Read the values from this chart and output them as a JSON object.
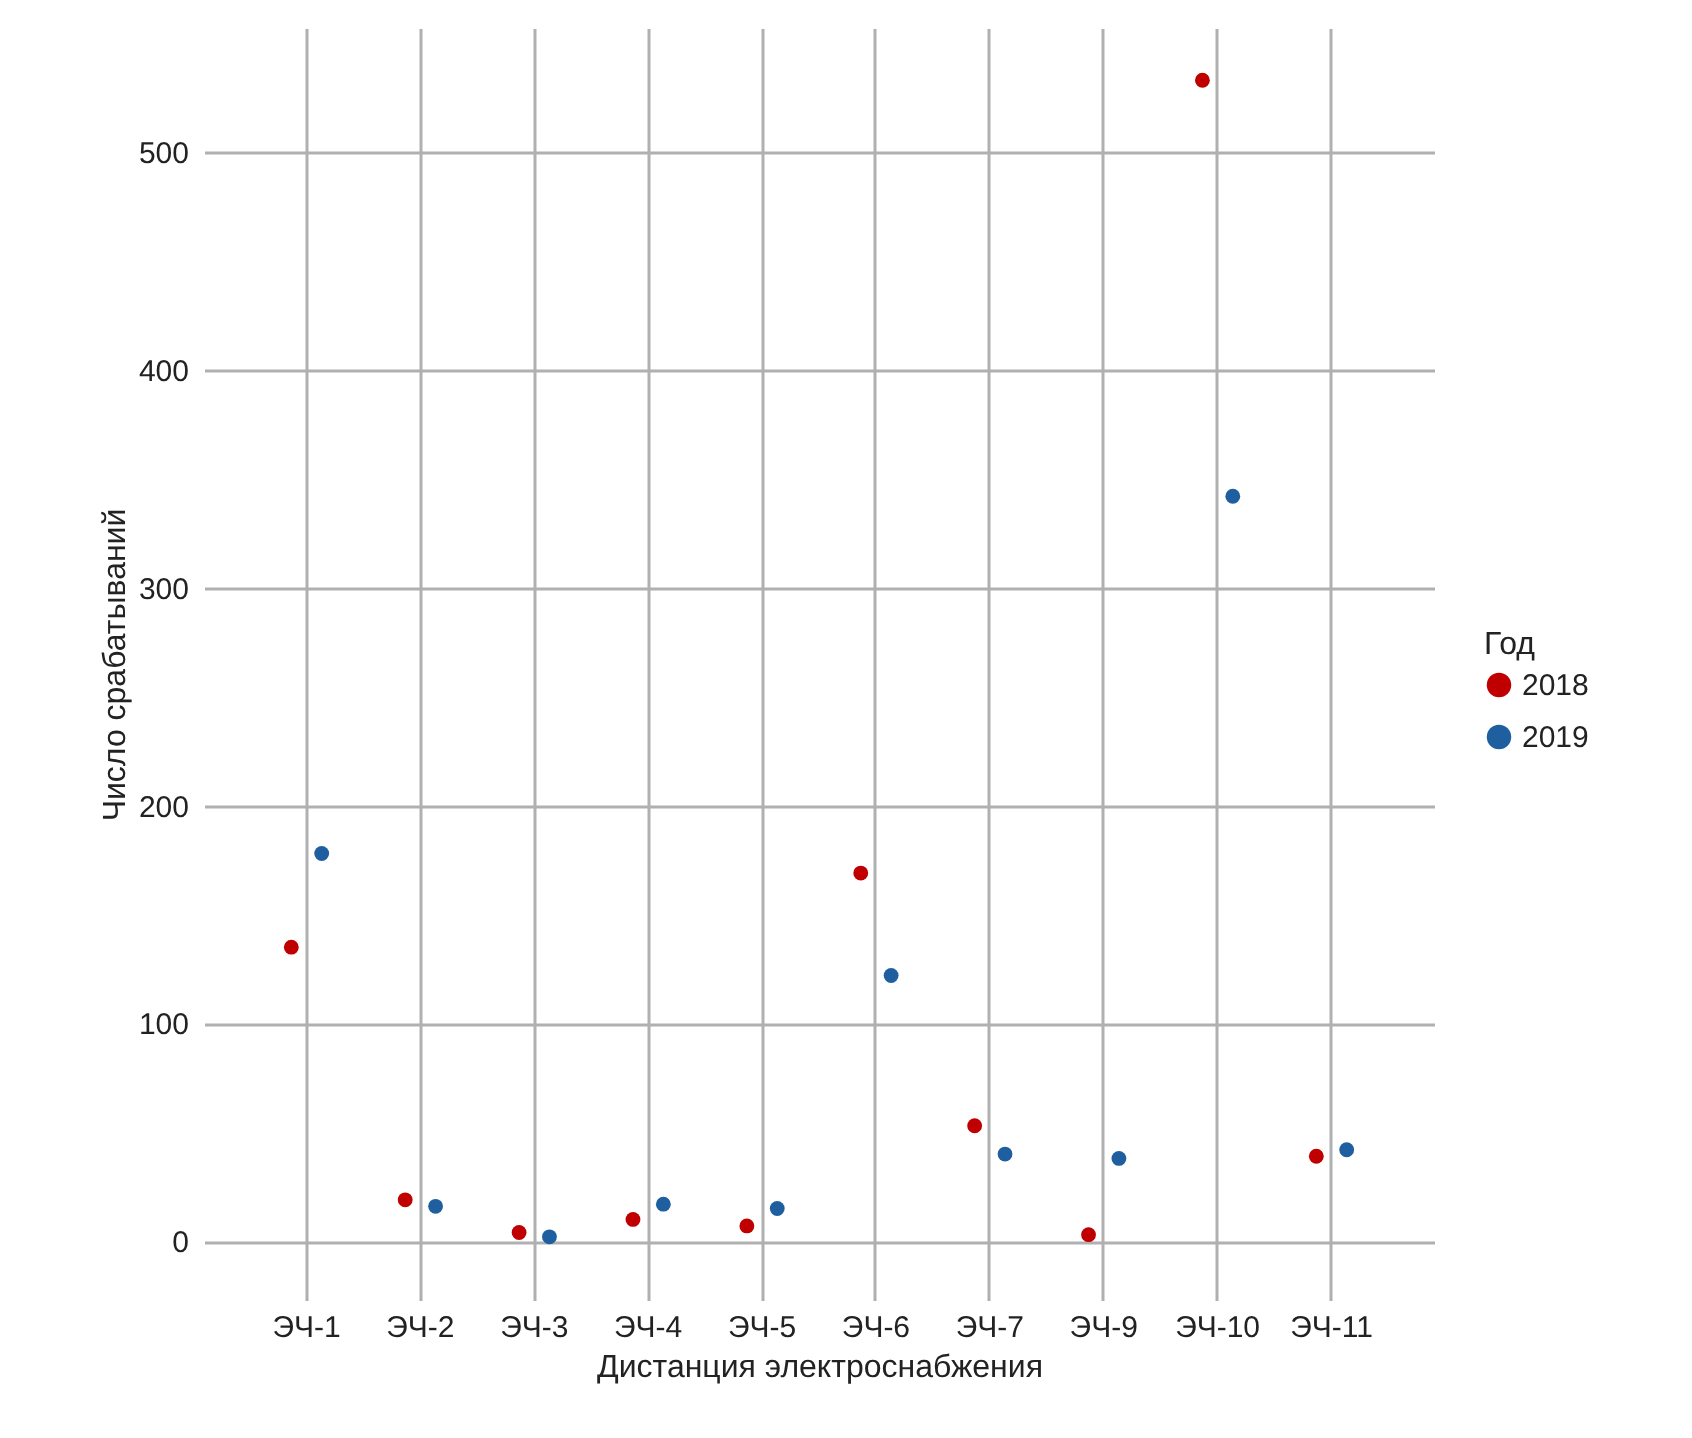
{
  "chart_data": {
    "type": "scatter",
    "xlabel": "Дистанция электроснабжения",
    "ylabel": "Число срабатываний",
    "legend_title": "Год",
    "categories": [
      "ЭЧ-1",
      "ЭЧ-2",
      "ЭЧ-3",
      "ЭЧ-4",
      "ЭЧ-5",
      "ЭЧ-6",
      "ЭЧ-7",
      "ЭЧ-9",
      "ЭЧ-10",
      "ЭЧ-11"
    ],
    "series": [
      {
        "name": "2018",
        "color": "#c00000",
        "values": [
          135,
          19,
          4,
          10,
          7,
          169,
          53,
          3,
          533,
          39
        ]
      },
      {
        "name": "2019",
        "color": "#1f5fa0",
        "values": [
          178,
          16,
          2,
          17,
          15,
          122,
          40,
          38,
          342,
          42
        ]
      }
    ],
    "ylim": [
      -27,
      557
    ],
    "yticks": [
      0,
      100,
      200,
      300,
      400,
      500
    ],
    "grid": true,
    "legend": "right",
    "marker": "circle"
  }
}
